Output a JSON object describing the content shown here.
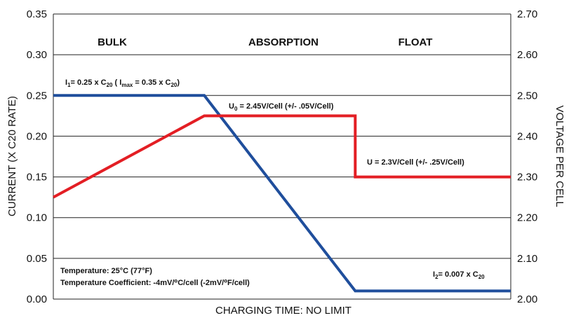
{
  "chart_data": {
    "type": "line",
    "xlabel": "CHARGING TIME: NO LIMIT",
    "ylabel_left": "CURRENT (X C20 RATE)",
    "ylabel_right": "VOLTAGE PER CELL",
    "ylim_left": [
      0,
      0.35
    ],
    "ylim_right": [
      2.0,
      2.7
    ],
    "yticks_left": [
      "0.00",
      "0.05",
      "0.10",
      "0.15",
      "0.20",
      "0.25",
      "0.30",
      "0.35"
    ],
    "yticks_right": [
      "2.00",
      "2.10",
      "2.20",
      "2.30",
      "2.40",
      "2.50",
      "2.60",
      "2.70"
    ],
    "grid": true,
    "phases": [
      "BULK",
      "ABSORPTION",
      "FLOAT"
    ],
    "series": [
      {
        "axis": "left",
        "color": "#1f4e9c",
        "x": [
          0,
          0.33,
          0.66,
          1.0
        ],
        "values": [
          0.25,
          0.25,
          0.01,
          0.01
        ]
      },
      {
        "axis": "right",
        "color": "#e31e24",
        "x": [
          0,
          0.33,
          0.66,
          0.66,
          1.0
        ],
        "values": [
          2.25,
          2.45,
          2.45,
          2.3,
          2.3
        ]
      }
    ],
    "annotations": {
      "i1_main": "I",
      "i1_sub": "1",
      "i1_mid": "= 0.25 x C",
      "i1_sub2": "20",
      "i1_mid2": " ( I",
      "i1_sub3": "max",
      "i1_mid3": " = 0.35 x C",
      "i1_sub4": "20",
      "i1_end": ")",
      "u0_main": "U",
      "u0_sub": "0",
      "u0_rest": " = 2.45V/Cell (+/- .05V/Cell)",
      "u_float": "U = 2.3V/Cell (+/- .25V/Cell)",
      "i2_main": "I",
      "i2_sub": "2",
      "i2_mid": "= 0.007 x C",
      "i2_sub2": "20",
      "temp_line1": "Temperature: 25°C (77°F)",
      "temp_line2": "Temperature Coefficient: -4mV/⁰C/cell (-2mV/⁰F/cell)"
    }
  }
}
